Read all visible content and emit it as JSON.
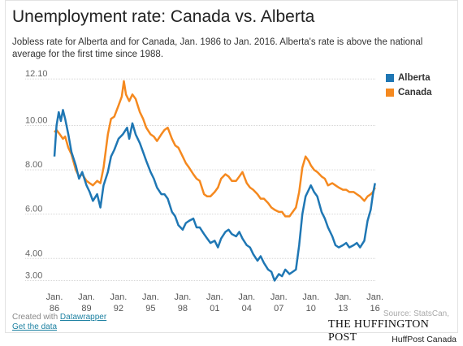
{
  "header": {
    "title": "Unemployment rate: Canada vs. Alberta",
    "subtitle": "Jobless rate for Alberta and for Canada, Jan. 1986 to Jan. 2016. Alberta's rate is above the national average for the first time since 1988."
  },
  "footer": {
    "created_with": "Created with",
    "tool_link": "Datawrapper",
    "data_link": "Get the data",
    "source": "Source: StatsCan,",
    "brand": "THE HUFFINGTON POST",
    "credit": "HuffPost Canada"
  },
  "colors": {
    "alberta": "#1f77b4",
    "canada": "#f5891f",
    "grid": "#d6d6d6"
  },
  "chart_data": {
    "type": "line",
    "title": "Unemployment rate: Canada vs. Alberta",
    "xlabel": "",
    "ylabel": "",
    "xlim": [
      1986,
      2016.1
    ],
    "ylim": [
      2.8,
      12.4
    ],
    "grid": true,
    "legend_position": "top-right",
    "y_ticks": [
      {
        "value": 12.1,
        "label": "12.10"
      },
      {
        "value": 10,
        "label": "10.00"
      },
      {
        "value": 8,
        "label": "8.00"
      },
      {
        "value": 6,
        "label": "6.00"
      },
      {
        "value": 4,
        "label": "4.00"
      },
      {
        "value": 3,
        "label": "3.00"
      }
    ],
    "x_ticks": [
      {
        "value": 1986,
        "label": "Jan.\n86"
      },
      {
        "value": 1989,
        "label": "Jan.\n89"
      },
      {
        "value": 1992,
        "label": "Jan.\n92"
      },
      {
        "value": 1995,
        "label": "Jan.\n95"
      },
      {
        "value": 1998,
        "label": "Jan.\n98"
      },
      {
        "value": 2001,
        "label": "Jan.\n01"
      },
      {
        "value": 2004,
        "label": "Jan.\n04"
      },
      {
        "value": 2007,
        "label": "Jan.\n07"
      },
      {
        "value": 2010,
        "label": "Jan.\n10"
      },
      {
        "value": 2013,
        "label": "Jan.\n13"
      },
      {
        "value": 2016,
        "label": "Jan.\n16"
      }
    ],
    "series": [
      {
        "name": "Alberta",
        "color": "#1f77b4",
        "points": [
          [
            1986.0,
            8.6
          ],
          [
            1986.2,
            10.0
          ],
          [
            1986.4,
            10.6
          ],
          [
            1986.6,
            10.2
          ],
          [
            1986.8,
            10.7
          ],
          [
            1987.0,
            10.3
          ],
          [
            1987.3,
            9.6
          ],
          [
            1987.6,
            8.8
          ],
          [
            1988.0,
            8.2
          ],
          [
            1988.3,
            7.6
          ],
          [
            1988.6,
            7.9
          ],
          [
            1989.0,
            7.3
          ],
          [
            1989.3,
            7.0
          ],
          [
            1989.6,
            6.6
          ],
          [
            1990.0,
            6.9
          ],
          [
            1990.3,
            6.3
          ],
          [
            1990.6,
            7.3
          ],
          [
            1991.0,
            7.9
          ],
          [
            1991.3,
            8.6
          ],
          [
            1991.6,
            8.9
          ],
          [
            1992.0,
            9.4
          ],
          [
            1992.4,
            9.6
          ],
          [
            1992.8,
            9.9
          ],
          [
            1993.0,
            9.4
          ],
          [
            1993.3,
            10.1
          ],
          [
            1993.6,
            9.6
          ],
          [
            1994.0,
            9.2
          ],
          [
            1994.3,
            8.8
          ],
          [
            1994.6,
            8.4
          ],
          [
            1995.0,
            7.9
          ],
          [
            1995.3,
            7.6
          ],
          [
            1995.6,
            7.2
          ],
          [
            1996.0,
            6.9
          ],
          [
            1996.3,
            6.9
          ],
          [
            1996.6,
            6.7
          ],
          [
            1997.0,
            6.1
          ],
          [
            1997.3,
            5.9
          ],
          [
            1997.6,
            5.5
          ],
          [
            1998.0,
            5.3
          ],
          [
            1998.3,
            5.6
          ],
          [
            1998.6,
            5.7
          ],
          [
            1999.0,
            5.8
          ],
          [
            1999.3,
            5.4
          ],
          [
            1999.6,
            5.4
          ],
          [
            2000.0,
            5.1
          ],
          [
            2000.3,
            4.9
          ],
          [
            2000.6,
            4.7
          ],
          [
            2001.0,
            4.8
          ],
          [
            2001.3,
            4.5
          ],
          [
            2001.6,
            4.9
          ],
          [
            2002.0,
            5.2
          ],
          [
            2002.3,
            5.3
          ],
          [
            2002.6,
            5.1
          ],
          [
            2003.0,
            5.0
          ],
          [
            2003.3,
            5.2
          ],
          [
            2003.6,
            4.9
          ],
          [
            2004.0,
            4.6
          ],
          [
            2004.3,
            4.5
          ],
          [
            2004.6,
            4.2
          ],
          [
            2005.0,
            3.9
          ],
          [
            2005.3,
            4.1
          ],
          [
            2005.6,
            3.8
          ],
          [
            2006.0,
            3.5
          ],
          [
            2006.3,
            3.4
          ],
          [
            2006.6,
            3.0
          ],
          [
            2007.0,
            3.3
          ],
          [
            2007.3,
            3.2
          ],
          [
            2007.6,
            3.5
          ],
          [
            2008.0,
            3.3
          ],
          [
            2008.3,
            3.4
          ],
          [
            2008.6,
            3.5
          ],
          [
            2008.9,
            4.6
          ],
          [
            2009.2,
            6.0
          ],
          [
            2009.5,
            6.8
          ],
          [
            2009.8,
            7.1
          ],
          [
            2010.0,
            7.3
          ],
          [
            2010.3,
            7.0
          ],
          [
            2010.6,
            6.8
          ],
          [
            2011.0,
            6.1
          ],
          [
            2011.3,
            5.8
          ],
          [
            2011.6,
            5.4
          ],
          [
            2012.0,
            5.0
          ],
          [
            2012.3,
            4.6
          ],
          [
            2012.6,
            4.5
          ],
          [
            2013.0,
            4.6
          ],
          [
            2013.3,
            4.7
          ],
          [
            2013.6,
            4.5
          ],
          [
            2014.0,
            4.6
          ],
          [
            2014.3,
            4.7
          ],
          [
            2014.6,
            4.5
          ],
          [
            2015.0,
            4.8
          ],
          [
            2015.3,
            5.7
          ],
          [
            2015.6,
            6.2
          ],
          [
            2015.8,
            6.9
          ],
          [
            2016.0,
            7.4
          ]
        ]
      },
      {
        "name": "Canada",
        "color": "#f5891f",
        "points": [
          [
            1986.0,
            9.7
          ],
          [
            1986.2,
            9.8
          ],
          [
            1986.5,
            9.6
          ],
          [
            1986.8,
            9.4
          ],
          [
            1987.0,
            9.5
          ],
          [
            1987.3,
            9.0
          ],
          [
            1987.6,
            8.7
          ],
          [
            1988.0,
            8.0
          ],
          [
            1988.3,
            7.7
          ],
          [
            1988.6,
            7.8
          ],
          [
            1989.0,
            7.5
          ],
          [
            1989.3,
            7.4
          ],
          [
            1989.6,
            7.3
          ],
          [
            1990.0,
            7.5
          ],
          [
            1990.3,
            7.4
          ],
          [
            1990.6,
            8.1
          ],
          [
            1991.0,
            9.6
          ],
          [
            1991.3,
            10.3
          ],
          [
            1991.6,
            10.4
          ],
          [
            1992.0,
            10.9
          ],
          [
            1992.3,
            11.3
          ],
          [
            1992.5,
            12.0
          ],
          [
            1992.7,
            11.4
          ],
          [
            1993.0,
            11.1
          ],
          [
            1993.3,
            11.4
          ],
          [
            1993.6,
            11.2
          ],
          [
            1994.0,
            10.6
          ],
          [
            1994.3,
            10.3
          ],
          [
            1994.6,
            9.9
          ],
          [
            1995.0,
            9.6
          ],
          [
            1995.3,
            9.5
          ],
          [
            1995.6,
            9.3
          ],
          [
            1996.0,
            9.6
          ],
          [
            1996.3,
            9.8
          ],
          [
            1996.6,
            9.9
          ],
          [
            1997.0,
            9.4
          ],
          [
            1997.3,
            9.1
          ],
          [
            1997.6,
            9.0
          ],
          [
            1998.0,
            8.6
          ],
          [
            1998.3,
            8.3
          ],
          [
            1998.6,
            8.1
          ],
          [
            1999.0,
            7.8
          ],
          [
            1999.3,
            7.6
          ],
          [
            1999.6,
            7.5
          ],
          [
            2000.0,
            6.9
          ],
          [
            2000.3,
            6.8
          ],
          [
            2000.6,
            6.8
          ],
          [
            2001.0,
            7.0
          ],
          [
            2001.3,
            7.2
          ],
          [
            2001.6,
            7.6
          ],
          [
            2002.0,
            7.8
          ],
          [
            2002.3,
            7.7
          ],
          [
            2002.6,
            7.5
          ],
          [
            2003.0,
            7.5
          ],
          [
            2003.3,
            7.7
          ],
          [
            2003.6,
            7.9
          ],
          [
            2004.0,
            7.4
          ],
          [
            2004.3,
            7.2
          ],
          [
            2004.6,
            7.1
          ],
          [
            2005.0,
            6.9
          ],
          [
            2005.3,
            6.7
          ],
          [
            2005.6,
            6.7
          ],
          [
            2006.0,
            6.5
          ],
          [
            2006.3,
            6.3
          ],
          [
            2006.6,
            6.2
          ],
          [
            2007.0,
            6.1
          ],
          [
            2007.3,
            6.1
          ],
          [
            2007.6,
            5.9
          ],
          [
            2008.0,
            5.9
          ],
          [
            2008.3,
            6.1
          ],
          [
            2008.6,
            6.3
          ],
          [
            2008.9,
            7.0
          ],
          [
            2009.2,
            8.1
          ],
          [
            2009.5,
            8.6
          ],
          [
            2009.8,
            8.4
          ],
          [
            2010.0,
            8.2
          ],
          [
            2010.3,
            8.0
          ],
          [
            2010.6,
            7.9
          ],
          [
            2011.0,
            7.7
          ],
          [
            2011.3,
            7.6
          ],
          [
            2011.6,
            7.3
          ],
          [
            2012.0,
            7.4
          ],
          [
            2012.3,
            7.3
          ],
          [
            2012.6,
            7.2
          ],
          [
            2013.0,
            7.1
          ],
          [
            2013.3,
            7.1
          ],
          [
            2013.6,
            7.0
          ],
          [
            2014.0,
            7.0
          ],
          [
            2014.3,
            6.9
          ],
          [
            2014.6,
            6.8
          ],
          [
            2015.0,
            6.6
          ],
          [
            2015.3,
            6.8
          ],
          [
            2015.6,
            6.9
          ],
          [
            2015.8,
            7.0
          ],
          [
            2016.0,
            7.2
          ]
        ]
      }
    ]
  }
}
